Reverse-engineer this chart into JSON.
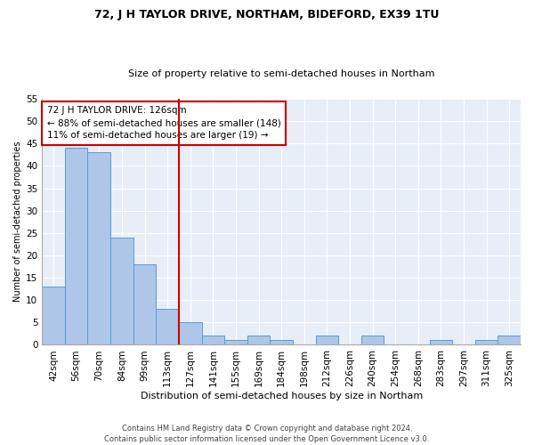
{
  "title": "72, J H TAYLOR DRIVE, NORTHAM, BIDEFORD, EX39 1TU",
  "subtitle": "Size of property relative to semi-detached houses in Northam",
  "xlabel": "Distribution of semi-detached houses by size in Northam",
  "ylabel": "Number of semi-detached properties",
  "categories": [
    "42sqm",
    "56sqm",
    "70sqm",
    "84sqm",
    "99sqm",
    "113sqm",
    "127sqm",
    "141sqm",
    "155sqm",
    "169sqm",
    "184sqm",
    "198sqm",
    "212sqm",
    "226sqm",
    "240sqm",
    "254sqm",
    "268sqm",
    "283sqm",
    "297sqm",
    "311sqm",
    "325sqm"
  ],
  "values": [
    13,
    44,
    43,
    24,
    18,
    8,
    5,
    2,
    1,
    2,
    1,
    0,
    2,
    0,
    2,
    0,
    0,
    1,
    0,
    1,
    2
  ],
  "bar_color": "#aec6e8",
  "bar_edge_color": "#5a9bd4",
  "highlight_line_index": 6,
  "annotation_text": "72 J H TAYLOR DRIVE: 126sqm\n← 88% of semi-detached houses are smaller (148)\n11% of semi-detached houses are larger (19) →",
  "annotation_box_color": "#ffffff",
  "annotation_box_edge": "#cc0000",
  "ylim": [
    0,
    55
  ],
  "yticks": [
    0,
    5,
    10,
    15,
    20,
    25,
    30,
    35,
    40,
    45,
    50,
    55
  ],
  "footer": "Contains HM Land Registry data © Crown copyright and database right 2024.\nContains public sector information licensed under the Open Government Licence v3.0.",
  "bg_color": "#e8eef7",
  "grid_color": "#ffffff",
  "title_fontsize": 9,
  "subtitle_fontsize": 8,
  "ylabel_fontsize": 7,
  "xlabel_fontsize": 8,
  "tick_fontsize": 7.5,
  "annotation_fontsize": 7.5,
  "footer_fontsize": 6
}
